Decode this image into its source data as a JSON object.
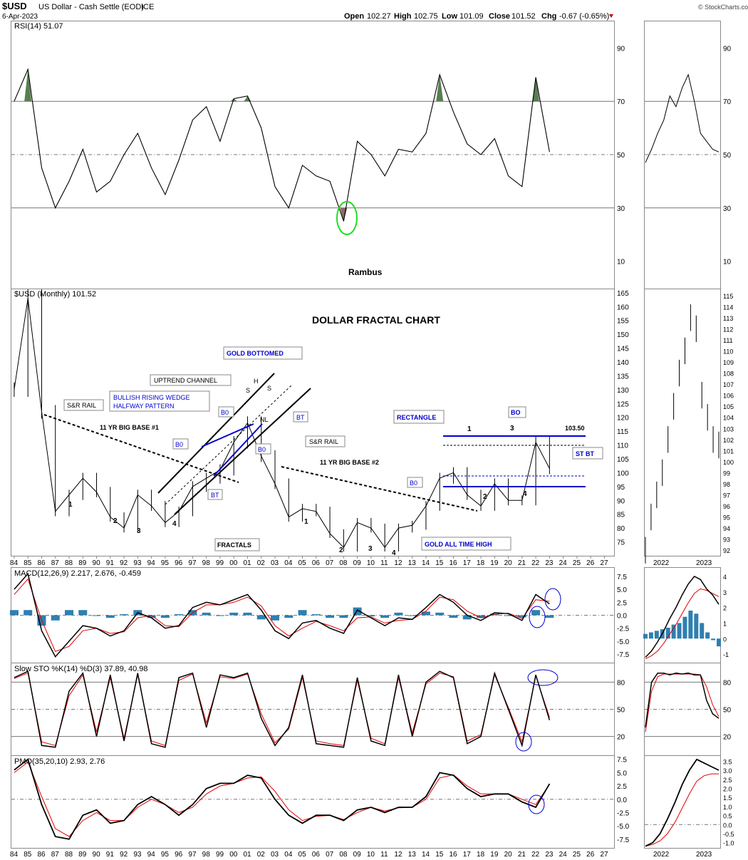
{
  "header": {
    "symbol": "$USD",
    "name": "US Dollar - Cash Settle (EOD)",
    "exchange": "ICE",
    "date": "6-Apr-2023",
    "open_label": "Open",
    "open": "102.27",
    "high_label": "High",
    "high": "102.75",
    "low_label": "Low",
    "low": "101.09",
    "close_label": "Close",
    "close": "101.52",
    "chg_label": "Chg",
    "chg": "-0.67 (-0.65%)",
    "watermark": "© StockCharts.com"
  },
  "colors": {
    "ob_fill": "#5a7d52",
    "os_fill": "#8c6a64",
    "blue": "#0000cc",
    "hist": "#2f7fb0",
    "red": "#e00000",
    "green_circle": "#22dd22"
  },
  "chart_data": [
    {
      "type": "line",
      "panel": "rsi",
      "legend": "RSI(14) 51.07",
      "ylim": [
        0,
        100
      ],
      "ticks": [
        "90",
        "70",
        "50",
        "30",
        "10"
      ],
      "annotation": "Rambus",
      "x": [
        1984,
        1985,
        1986,
        1987,
        1988,
        1989,
        1990,
        1991,
        1992,
        1993,
        1994,
        1995,
        1996,
        1997,
        1998,
        1999,
        2000,
        2001,
        2002,
        2003,
        2004,
        2005,
        2006,
        2007,
        2008,
        2009,
        2010,
        2011,
        2012,
        2013,
        2014,
        2015,
        2016,
        2017,
        2018,
        2019,
        2020,
        2021,
        2022,
        2023
      ],
      "values": [
        70,
        82,
        45,
        30,
        40,
        52,
        36,
        40,
        50,
        58,
        45,
        35,
        48,
        63,
        68,
        55,
        71,
        72,
        60,
        38,
        30,
        46,
        42,
        40,
        25,
        55,
        50,
        42,
        52,
        51,
        58,
        80,
        66,
        54,
        50,
        56,
        42,
        38,
        79,
        51
      ]
    },
    {
      "type": "line",
      "panel": "price",
      "title": "DOLLAR FRACTAL CHART",
      "legend": "$USD (Monthly) 101.52",
      "ylim": [
        70,
        166
      ],
      "ticks": [
        "165",
        "160",
        "155",
        "150",
        "145",
        "140",
        "135",
        "130",
        "125",
        "120",
        "115",
        "110",
        "105",
        "100",
        "95",
        "90",
        "85",
        "80",
        "75"
      ],
      "x_ticks": [
        "84",
        "85",
        "86",
        "87",
        "88",
        "89",
        "90",
        "91",
        "92",
        "93",
        "94",
        "95",
        "96",
        "97",
        "98",
        "99",
        "00",
        "01",
        "02",
        "03",
        "04",
        "05",
        "06",
        "07",
        "08",
        "09",
        "10",
        "11",
        "12",
        "13",
        "14",
        "15",
        "16",
        "17",
        "18",
        "19",
        "20",
        "21",
        "22",
        "23",
        "24",
        "25",
        "26",
        "27"
      ],
      "x": [
        1984,
        1985,
        1986,
        1987,
        1988,
        1989,
        1990,
        1991,
        1992,
        1993,
        1994,
        1995,
        1996,
        1997,
        1998,
        1999,
        2000,
        2001,
        2002,
        2003,
        2004,
        2005,
        2006,
        2007,
        2008,
        2009,
        2010,
        2011,
        2012,
        2013,
        2014,
        2015,
        2016,
        2017,
        2018,
        2019,
        2020,
        2021,
        2022,
        2023
      ],
      "values": [
        130,
        163,
        122,
        86,
        92,
        98,
        93,
        84,
        80,
        92,
        88,
        82,
        86,
        95,
        98,
        101,
        111,
        118,
        106,
        96,
        84,
        87,
        86,
        78,
        73,
        82,
        80,
        73,
        80,
        81,
        88,
        98,
        100,
        92,
        88,
        96,
        90,
        90,
        111,
        101.52
      ]
    },
    {
      "type": "line",
      "panel": "macd",
      "legend": "MACD(12,26,9) 2.217, 2.676, -0.459",
      "ylim": [
        -9,
        9
      ],
      "ticks": [
        "7.5",
        "5.0",
        "2.5",
        "0.0",
        "-2.5",
        "-5.0",
        "-7.5"
      ],
      "x": [
        1984,
        1985,
        1986,
        1987,
        1988,
        1989,
        1990,
        1991,
        1992,
        1993,
        1994,
        1995,
        1996,
        1997,
        1998,
        1999,
        2000,
        2001,
        2002,
        2003,
        2004,
        2005,
        2006,
        2007,
        2008,
        2009,
        2010,
        2011,
        2012,
        2013,
        2014,
        2015,
        2016,
        2017,
        2018,
        2019,
        2020,
        2021,
        2022,
        2023
      ],
      "series": [
        {
          "name": "MACD",
          "values": [
            5.0,
            8.0,
            -3.0,
            -8.0,
            -5.0,
            -2.0,
            -2.5,
            -4.0,
            -3.0,
            0.5,
            -0.5,
            -2.5,
            -2.0,
            1.5,
            2.5,
            2.0,
            3.0,
            4.0,
            1.0,
            -3.0,
            -4.5,
            -1.5,
            -1.0,
            -2.5,
            -3.5,
            1.0,
            -0.5,
            -2.0,
            -0.5,
            -0.8,
            1.5,
            4.0,
            2.5,
            0.0,
            -1.0,
            0.5,
            0.3,
            -1.0,
            4.0,
            2.2
          ]
        },
        {
          "name": "Signal",
          "values": [
            4.0,
            7.0,
            -1.0,
            -7.0,
            -6.0,
            -3.0,
            -2.5,
            -3.5,
            -3.2,
            -0.5,
            0.0,
            -2.0,
            -2.2,
            0.5,
            2.0,
            2.0,
            2.5,
            3.5,
            1.8,
            -2.0,
            -4.0,
            -2.5,
            -1.2,
            -2.0,
            -3.0,
            -0.5,
            -0.3,
            -1.5,
            -1.0,
            -0.8,
            0.8,
            3.5,
            3.0,
            0.8,
            -0.5,
            0.2,
            0.4,
            -0.6,
            3.0,
            2.7
          ]
        }
      ]
    },
    {
      "type": "line",
      "panel": "stoch",
      "legend": "Slow STO %K(14) %D(3) 37.89, 40.98",
      "ylim": [
        0,
        100
      ],
      "ticks": [
        "80",
        "50",
        "20"
      ],
      "x": [
        1984,
        1985,
        1986,
        1987,
        1988,
        1989,
        1990,
        1991,
        1992,
        1993,
        1994,
        1995,
        1996,
        1997,
        1998,
        1999,
        2000,
        2001,
        2002,
        2003,
        2004,
        2005,
        2006,
        2007,
        2008,
        2009,
        2010,
        2011,
        2012,
        2013,
        2014,
        2015,
        2016,
        2017,
        2018,
        2019,
        2020,
        2021,
        2022,
        2023
      ],
      "series": [
        {
          "name": "%K",
          "values": [
            85,
            92,
            10,
            8,
            70,
            90,
            20,
            88,
            15,
            90,
            12,
            8,
            85,
            90,
            30,
            88,
            85,
            90,
            40,
            10,
            30,
            88,
            12,
            10,
            8,
            85,
            15,
            10,
            88,
            20,
            80,
            92,
            85,
            12,
            20,
            90,
            50,
            10,
            88,
            38
          ]
        },
        {
          "name": "%D",
          "values": [
            84,
            90,
            14,
            10,
            65,
            88,
            25,
            85,
            18,
            88,
            15,
            10,
            82,
            89,
            35,
            86,
            84,
            89,
            45,
            13,
            28,
            85,
            15,
            12,
            10,
            82,
            18,
            12,
            85,
            24,
            78,
            90,
            86,
            15,
            22,
            88,
            52,
            14,
            87,
            41
          ]
        }
      ]
    },
    {
      "type": "line",
      "panel": "pmo",
      "legend": "PMO(35,20,10) 2.93, 2.76",
      "ylim": [
        -9,
        8
      ],
      "ticks": [
        "7.5",
        "5.0",
        "2.5",
        "0.0",
        "-2.5",
        "-5.0",
        "-7.5"
      ],
      "x": [
        1984,
        1985,
        1986,
        1987,
        1988,
        1989,
        1990,
        1991,
        1992,
        1993,
        1994,
        1995,
        1996,
        1997,
        1998,
        1999,
        2000,
        2001,
        2002,
        2003,
        2004,
        2005,
        2006,
        2007,
        2008,
        2009,
        2010,
        2011,
        2012,
        2013,
        2014,
        2015,
        2016,
        2017,
        2018,
        2019,
        2020,
        2021,
        2022,
        2023
      ],
      "series": [
        {
          "name": "PMO",
          "values": [
            5.5,
            7.5,
            -1.0,
            -7.0,
            -7.5,
            -3.0,
            -2.0,
            -4.5,
            -4.0,
            -1.0,
            0.5,
            -1.0,
            -3.0,
            -1.0,
            2.0,
            3.0,
            3.0,
            4.5,
            4.0,
            0.0,
            -3.0,
            -4.5,
            -3.0,
            -3.0,
            -4.0,
            -2.0,
            -1.5,
            -2.5,
            -1.5,
            -1.5,
            0.5,
            5.0,
            4.5,
            2.0,
            0.5,
            1.0,
            1.0,
            -0.5,
            -1.5,
            2.9
          ]
        },
        {
          "name": "Signal",
          "values": [
            5.0,
            7.0,
            0.5,
            -5.5,
            -7.0,
            -4.0,
            -2.5,
            -4.0,
            -4.0,
            -1.5,
            0.0,
            -1.0,
            -2.5,
            -1.5,
            1.0,
            2.5,
            3.0,
            4.0,
            4.2,
            1.5,
            -2.0,
            -4.0,
            -3.2,
            -3.0,
            -3.8,
            -2.5,
            -1.5,
            -2.2,
            -1.6,
            -1.5,
            0.0,
            4.0,
            4.6,
            2.5,
            1.0,
            1.0,
            1.0,
            0.0,
            -1.0,
            2.8
          ]
        }
      ]
    }
  ],
  "side_panels": {
    "x_ticks": [
      "2022",
      "2023"
    ],
    "rsi_ticks": [
      "90",
      "70",
      "50",
      "30",
      "10"
    ],
    "price_ticks": [
      "115",
      "114",
      "113",
      "112",
      "111",
      "110",
      "109",
      "108",
      "107",
      "106",
      "105",
      "104",
      "103",
      "102",
      "101",
      "100",
      "99",
      "98",
      "97",
      "96",
      "95",
      "94",
      "93",
      "92"
    ],
    "macd_ticks": [
      "4",
      "3",
      "2",
      "1",
      "0",
      "-1"
    ],
    "stoch_ticks": [
      "80",
      "50",
      "20"
    ],
    "pmo_ticks": [
      "3.5",
      "3.0",
      "2.5",
      "2.0",
      "1.5",
      "1.0",
      "0.5",
      "0.0",
      "-0.5",
      "-1.0"
    ]
  },
  "annotations": {
    "sr_rail_1": "S&R RAIL",
    "big_base_1": "11 YR BIG BASE #1",
    "big_base_2": "11 YR BIG BASE #2",
    "sr_rail_2": "S&R RAIL",
    "wedge": "BULLISH RISING WEDGE",
    "wedge_2": "HALFWAY PATTERN",
    "uptrend": "UPTREND CHANNEL",
    "gold_bottomed": "GOLD BOTTOMED",
    "gold_ath": "GOLD ALL TIME HIGH",
    "fractals": "FRACTALS",
    "rectangle": "RECTANGLE",
    "bo": "BO",
    "b0": "B0",
    "bt": "BT",
    "nl": "NL",
    "st_bt": "ST BT",
    "level": "103.50",
    "s": "S",
    "h": "H",
    "n1": "1",
    "n2": "2",
    "n3": "3",
    "n4": "4"
  }
}
